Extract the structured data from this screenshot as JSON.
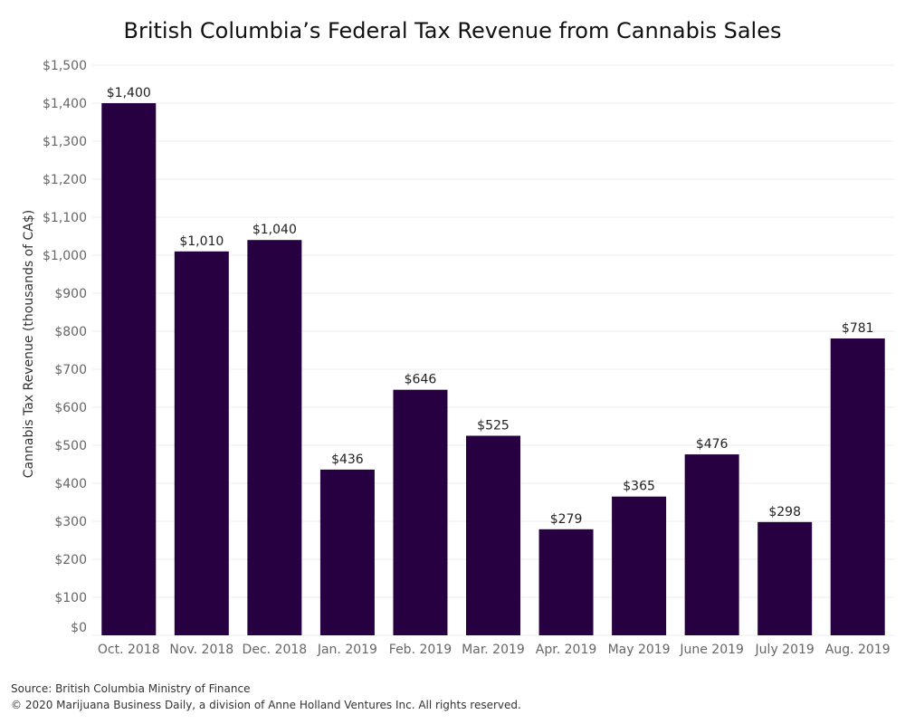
{
  "chart_data": {
    "type": "bar",
    "title": "British Columbia’s Federal Tax Revenue from Cannabis Sales",
    "xlabel": "",
    "ylabel": "Cannabis Tax Revenue (thousands of CA$)",
    "categories": [
      "Oct. 2018",
      "Nov. 2018",
      "Dec. 2018",
      "Jan. 2019",
      "Feb. 2019",
      "Mar. 2019",
      "Apr. 2019",
      "May 2019",
      "June 2019",
      "July 2019",
      "Aug. 2019"
    ],
    "values": [
      1400,
      1010,
      1040,
      436,
      646,
      525,
      279,
      365,
      476,
      298,
      781
    ],
    "data_labels": [
      "$1,400",
      "$1,010",
      "$1,040",
      "$436",
      "$646",
      "$525",
      "$279",
      "$365",
      "$476",
      "$298",
      "$781"
    ],
    "ylim": [
      0,
      1500
    ],
    "yticks": [
      0,
      100,
      200,
      300,
      400,
      500,
      600,
      700,
      800,
      900,
      1000,
      1100,
      1200,
      1300,
      1400,
      1500
    ],
    "ytick_labels": [
      "$0",
      "$100",
      "$200",
      "$300",
      "$400",
      "$500",
      "$600",
      "$700",
      "$800",
      "$900",
      "$1,000",
      "$1,100",
      "$1,200",
      "$1,300",
      "$1,400",
      "$1,500"
    ],
    "grid": true,
    "legend": "none",
    "bar_color": "#270041"
  },
  "footer": {
    "source": "Source: British Columbia Ministry of Finance",
    "copyright": "© 2020 Marijuana Business Daily, a division of Anne Holland Ventures Inc. All rights reserved."
  }
}
